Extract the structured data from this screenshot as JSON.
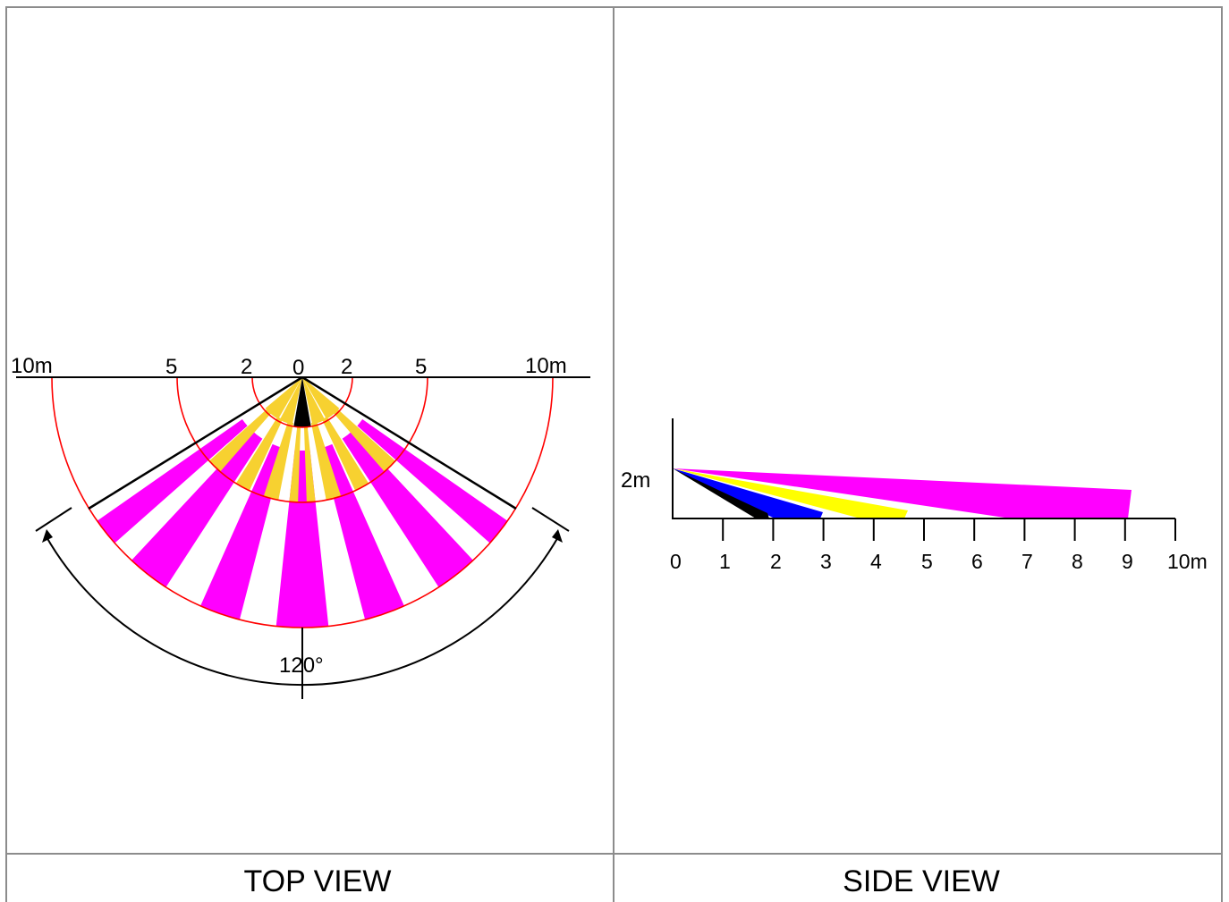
{
  "top_view": {
    "caption": "TOP VIEW",
    "scale_labels": [
      "10m",
      "5",
      "2",
      "0",
      "2",
      "5",
      "10m"
    ],
    "angle_label": "120°",
    "colors": {
      "outer_zone": "#ff00ff",
      "middle_zone": "#f7d130",
      "center_zone": "#000000",
      "range_arcs": "#ff0000"
    }
  },
  "side_view": {
    "caption": "SIDE VIEW",
    "height_label": "2m",
    "x_ticks": [
      "0",
      "1",
      "2",
      "3",
      "4",
      "5",
      "6",
      "7",
      "8",
      "9",
      "10m"
    ],
    "colors": [
      "#ff00ff",
      "#ffff00",
      "#0000ff",
      "#000000"
    ]
  }
}
